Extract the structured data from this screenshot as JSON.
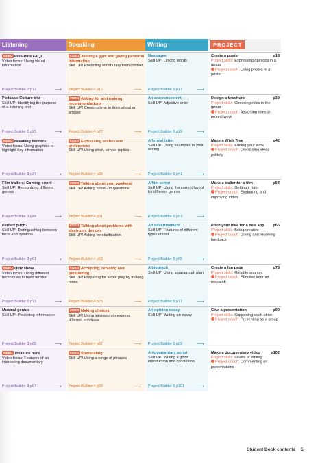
{
  "header": {
    "listening": "Listening",
    "speaking": "Speaking",
    "writing": "Writing",
    "project": "PROJECT"
  },
  "video_tag": "VIDEO",
  "project_skills_label": "Project skills:",
  "project_coach_label": "Project coach:",
  "rows": [
    {
      "listening": {
        "video": true,
        "title": "Free-time FAQs",
        "line1": "Video focus: Using visual",
        "line2": "information",
        "builder": "Project Builder 3  p13"
      },
      "speaking": {
        "video": true,
        "title": "Joining a gym and giving personal information",
        "line1": "Skill UP! Predicting vocabulary from context",
        "builder": "Project Builder 4  p15"
      },
      "writing": {
        "title": "Messages",
        "line1": "Skill UP! Linking words",
        "builder": "Project Builder 5  p17"
      },
      "project": {
        "title": "Create a poster",
        "page": "p18",
        "skills": "Expressing opinions in a group",
        "coach": "Using photos in a poster"
      }
    },
    {
      "listening": {
        "video": false,
        "title": "Podcast: Culture trip",
        "line1": "Skill UP! Identifying the purpose",
        "line2": "of a listening text",
        "builder": "Project Builder 3  p25"
      },
      "speaking": {
        "video": true,
        "title": "Asking for and making recommendations",
        "line1": "Skill UP! Creating time to think about an answer",
        "builder": "Project Builder 4  p27"
      },
      "writing": {
        "title": "An announcement",
        "line1": "Skill UP! Adjective order",
        "builder": "Project Builder 5  p29"
      },
      "project": {
        "title": "Design a brochure",
        "page": "p30",
        "skills": "Choosing roles in the group",
        "coach": "Assigning roles in project work"
      }
    },
    {
      "listening": {
        "video": true,
        "title": "Breaking barriers",
        "line1": "Video focus: Using graphics to",
        "line2": "highlight key information",
        "builder": "Project Builder 3  p37"
      },
      "speaking": {
        "video": true,
        "title": "Expressing wishes and preferences",
        "line1": "Skill UP! Using short, simple replies",
        "builder": "Project Builder 4  p39"
      },
      "writing": {
        "title": "A formal letter",
        "line1": "Skill UP! Using examples in your writing",
        "builder": "Project Builder 5  p41"
      },
      "project": {
        "title": "Make a Wish Tree",
        "page": "p42",
        "skills": "Editing your work",
        "coach": "Discussing ideas politely"
      }
    },
    {
      "listening": {
        "video": false,
        "title": "Film trailers: Coming soon!",
        "line1": "Skill UP! Recognizing different",
        "line2": "genres",
        "builder": "Project Builder 3  p49"
      },
      "speaking": {
        "video": true,
        "title": "Talking about your weekend",
        "line1": "Skill UP! Asking follow-up questions",
        "builder": "Project Builder 4  p51"
      },
      "writing": {
        "title": "A film script",
        "line1": "Skill UP! Using the correct layout for different genres",
        "builder": "Project Builder 5  p53"
      },
      "project": {
        "title": "Make a trailer for a film",
        "page": "p54",
        "skills": "Getting it right",
        "coach": "Evaluating and improving video"
      }
    },
    {
      "listening": {
        "video": false,
        "title": "Perfect pitch?",
        "line1": "Skill UP! Distinguishing between",
        "line2": "facts and opinions",
        "builder": "Project Builder 3  p61"
      },
      "speaking": {
        "video": true,
        "title": "Talking about problems with electronic devices",
        "line1": "Skill UP! Asking for clarification",
        "builder": "Project Builder 4  p63"
      },
      "writing": {
        "title": "An advertisement",
        "line1": "Skill UP! Features of different types of text",
        "builder": "Project Builder 5  p65"
      },
      "project": {
        "title": "Pitch your idea for a new app",
        "page": "p66",
        "skills": "Being creative",
        "coach": "Giving and receiving feedback"
      }
    },
    {
      "listening": {
        "video": true,
        "title": "Quiz show",
        "line1": "Video focus: Using different",
        "line2": "techniques to build tension",
        "builder": "Project Builder 3  p73"
      },
      "speaking": {
        "video": true,
        "title": "Accepting, refusing and persuading",
        "line1": "Skill UP! Preparing for a role play by making notes",
        "builder": "Project Builder 4  p75"
      },
      "writing": {
        "title": "A biograph",
        "line1": "Skill UP! Using a paragraph plan",
        "builder": "Project Builder 5  p77"
      },
      "project": {
        "title": "Create a fan page",
        "page": "p78",
        "skills": "Reliable sources",
        "coach": "Effective internet research"
      }
    },
    {
      "listening": {
        "video": false,
        "title": "Musical genius",
        "line1": "Skill UP! Predicting information",
        "line2": "",
        "builder": "Project Builder 3  p85"
      },
      "speaking": {
        "video": true,
        "title": "Making choices",
        "line1": "Skill UP! Using intonation to express different emotions",
        "builder": "Project Builder 4  p87"
      },
      "writing": {
        "title": "An opinion essay",
        "line1": "Skill UP! Writing an essay",
        "builder": "Project Builder 5  p89"
      },
      "project": {
        "title": "Give a presentation",
        "page": "p90",
        "skills": "Supporting each other",
        "coach": "Presenting as a group"
      }
    },
    {
      "listening": {
        "video": true,
        "title": "Treasure hunt",
        "line1": "Video focus: Features of an",
        "line2": "interesting documentary",
        "builder": "Project Builder 3  p97"
      },
      "speaking": {
        "video": true,
        "title": "Speculating",
        "line1": "Skill UP! Using a range of phrases",
        "builder": "Project Builder 4  p99"
      },
      "writing": {
        "title": "A documentary script",
        "line1": "Skill UP! Writing a good introduction and conclusion",
        "builder": "Project Builder 5  p101"
      },
      "project": {
        "title": "Make a documentary video",
        "page": "p102",
        "skills": "Levels of editing",
        "coach": "Commenting on presentations"
      }
    }
  ],
  "footer": {
    "label": "Student Book contents",
    "page": "5"
  }
}
